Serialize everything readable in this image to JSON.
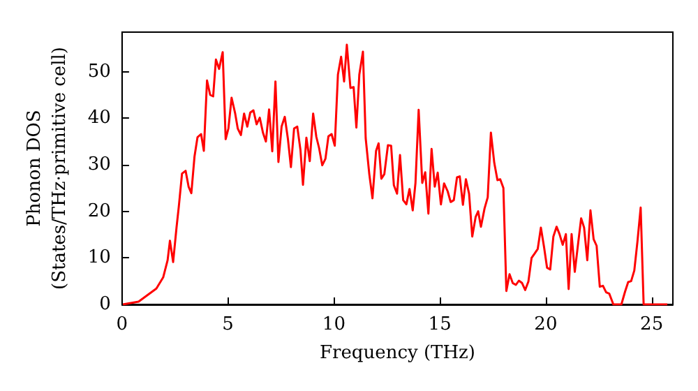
{
  "chart_data": {
    "type": "line",
    "xlabel": "Frequency (THz)",
    "ylabel": "Phonon DOS\n(States/THz·primitive cell)",
    "xlim": [
      0,
      26
    ],
    "ylim": [
      0,
      58.5
    ],
    "xticks": [
      0,
      5,
      10,
      15,
      20,
      25
    ],
    "yticks": [
      0,
      10,
      20,
      30,
      40,
      50
    ],
    "grid": false,
    "marker": "none",
    "line_style": "solid",
    "series": [
      {
        "color": "#ff0000",
        "x": [
          0.04,
          0.78,
          1.62,
          1.94,
          2.15,
          2.26,
          2.41,
          2.57,
          2.68,
          2.83,
          3.0,
          3.14,
          3.27,
          3.42,
          3.56,
          3.73,
          3.86,
          4.01,
          4.16,
          4.3,
          4.43,
          4.58,
          4.75,
          4.89,
          5.02,
          5.17,
          5.34,
          5.46,
          5.61,
          5.76,
          5.91,
          6.05,
          6.2,
          6.35,
          6.5,
          6.65,
          6.79,
          6.94,
          7.09,
          7.24,
          7.38,
          7.53,
          7.68,
          7.83,
          7.97,
          8.12,
          8.27,
          8.42,
          8.54,
          8.7,
          8.86,
          9.02,
          9.17,
          9.3,
          9.45,
          9.6,
          9.74,
          9.89,
          10.04,
          10.19,
          10.34,
          10.48,
          10.61,
          10.78,
          10.93,
          11.06,
          11.2,
          11.37,
          11.5,
          11.67,
          11.82,
          11.99,
          12.11,
          12.24,
          12.38,
          12.55,
          12.7,
          12.83,
          12.98,
          13.12,
          13.27,
          13.42,
          13.57,
          13.72,
          13.85,
          14.0,
          14.17,
          14.31,
          14.46,
          14.61,
          14.76,
          14.9,
          15.05,
          15.2,
          15.37,
          15.51,
          15.66,
          15.81,
          15.94,
          16.09,
          16.23,
          16.38,
          16.53,
          16.69,
          16.81,
          16.94,
          17.11,
          17.26,
          17.41,
          17.57,
          17.72,
          17.85,
          18.0,
          18.14,
          18.29,
          18.44,
          18.59,
          18.73,
          18.88,
          19.03,
          19.18,
          19.33,
          19.47,
          19.62,
          19.77,
          19.92,
          20.06,
          20.21,
          20.36,
          20.51,
          20.65,
          20.8,
          20.95,
          21.08,
          21.22,
          21.37,
          21.52,
          21.67,
          21.81,
          21.96,
          22.11,
          22.26,
          22.4,
          22.55,
          22.7,
          22.85,
          23.0,
          23.19,
          23.57,
          23.74,
          23.89,
          24.03,
          24.18,
          24.33,
          24.48,
          24.62,
          25.74
        ],
        "values": [
          0,
          0.6,
          3.4,
          5.8,
          9.5,
          13.7,
          9.1,
          16.5,
          21.1,
          28.1,
          28.7,
          25.3,
          23.9,
          31.8,
          35.9,
          36.6,
          33,
          48.1,
          45,
          44.7,
          52.6,
          50.6,
          54.2,
          35.5,
          37.8,
          44.4,
          41,
          37.8,
          36.4,
          41,
          38.2,
          41.2,
          41.7,
          38.7,
          40.1,
          36.9,
          35,
          41.9,
          32.9,
          47.9,
          30.6,
          38.2,
          40.3,
          35.5,
          29.5,
          37.8,
          38.2,
          33.2,
          25.7,
          35.8,
          30.8,
          41,
          36,
          33.6,
          29.9,
          31.3,
          36.1,
          36.6,
          34.1,
          49.4,
          53.2,
          47.9,
          55.8,
          46.5,
          46.7,
          38,
          49.4,
          54.3,
          35.7,
          28,
          22.8,
          33,
          34.6,
          27,
          28,
          34.2,
          34.1,
          25.6,
          23.8,
          32.1,
          22.4,
          21.5,
          24.8,
          20.2,
          26.1,
          41.8,
          26.1,
          28.4,
          19.5,
          33.4,
          25.3,
          28.3,
          21.5,
          26,
          24.3,
          22,
          22.4,
          27.3,
          27.5,
          21.4,
          26.9,
          23.8,
          14.6,
          18.8,
          20,
          16.7,
          20.6,
          23,
          36.9,
          30.4,
          26.7,
          26.9,
          25,
          2.9,
          6.5,
          4.6,
          4.2,
          5.1,
          4.6,
          3.1,
          4.9,
          10,
          10.9,
          11.9,
          16.5,
          12.3,
          7.9,
          7.5,
          14.6,
          16.7,
          15.1,
          12.8,
          15.1,
          3.3,
          15.1,
          7,
          12.8,
          18.5,
          16.5,
          9.5,
          20.2,
          14,
          12.6,
          3.8,
          4,
          2.6,
          2.3,
          0,
          0,
          2.7,
          4.8,
          5,
          7.3,
          13.6,
          20.8,
          0,
          0
        ]
      }
    ]
  }
}
